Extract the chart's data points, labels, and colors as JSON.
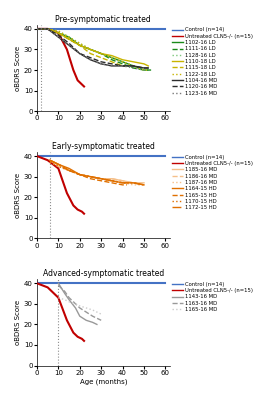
{
  "panels": [
    {
      "title": "Pre-symptomatic treated",
      "dashed_x": 2,
      "series": [
        {
          "label": "Control (n=14)",
          "color": "#4472C4",
          "ls": "solid",
          "lw": 1.5,
          "x": [
            0,
            5,
            10,
            15,
            20,
            25,
            30,
            35,
            40,
            45,
            50,
            55,
            60
          ],
          "y": [
            40,
            40,
            40,
            40,
            40,
            40,
            40,
            40,
            40,
            40,
            40,
            40,
            40
          ]
        },
        {
          "label": "Untreated CLN5-/- (n=15)",
          "color": "#C00000",
          "ls": "solid",
          "lw": 1.5,
          "x": [
            0,
            5,
            10,
            14,
            17,
            19,
            21,
            22
          ],
          "y": [
            40,
            40,
            38,
            30,
            20,
            15,
            13,
            12
          ]
        },
        {
          "label": "1102-16 LD",
          "color": "#1a8a1a",
          "ls": "solid",
          "lw": 1.0,
          "x": [
            0,
            5,
            10,
            15,
            20,
            25,
            30,
            35,
            40,
            45,
            50,
            53
          ],
          "y": [
            40,
            40,
            38,
            36,
            32,
            30,
            28,
            26,
            24,
            22,
            20,
            20
          ]
        },
        {
          "label": "1111-16 LD",
          "color": "#1a8a1a",
          "ls": "dashed",
          "lw": 1.0,
          "x": [
            0,
            5,
            10,
            15,
            20,
            25,
            30,
            35,
            40,
            45,
            50,
            52
          ],
          "y": [
            40,
            40,
            38,
            35,
            32,
            30,
            28,
            25,
            23,
            21,
            20,
            20
          ]
        },
        {
          "label": "1128-16 LD",
          "color": "#7dc87d",
          "ls": "dotted",
          "lw": 1.0,
          "x": [
            0,
            5,
            10,
            15,
            20,
            25,
            30,
            35,
            40,
            45,
            50,
            52
          ],
          "y": [
            40,
            40,
            39,
            36,
            33,
            30,
            28,
            26,
            24,
            22,
            20,
            20
          ]
        },
        {
          "label": "1110-18 LD",
          "color": "#c8b400",
          "ls": "solid",
          "lw": 1.0,
          "x": [
            0,
            5,
            10,
            15,
            20,
            25,
            30,
            35,
            40,
            45,
            50,
            52
          ],
          "y": [
            40,
            40,
            38,
            35,
            32,
            30,
            28,
            27,
            25,
            24,
            23,
            22
          ]
        },
        {
          "label": "1115-18 LD",
          "color": "#c8b400",
          "ls": "dashed",
          "lw": 1.0,
          "x": [
            0,
            5,
            10,
            15,
            20,
            25,
            30,
            35,
            40,
            42
          ],
          "y": [
            40,
            40,
            38,
            35,
            32,
            28,
            26,
            24,
            22,
            22
          ]
        },
        {
          "label": "1122-18 LD",
          "color": "#c8b400",
          "ls": "dotted",
          "lw": 1.0,
          "x": [
            0,
            5,
            10,
            15,
            20,
            25,
            30,
            35,
            40,
            45,
            50,
            52
          ],
          "y": [
            40,
            40,
            39,
            36,
            33,
            30,
            28,
            26,
            24,
            22,
            20,
            20
          ]
        },
        {
          "label": "1104-16 MD",
          "color": "#2d2d2d",
          "ls": "solid",
          "lw": 1.0,
          "x": [
            0,
            5,
            10,
            15,
            20,
            25,
            30,
            35,
            40,
            45,
            50,
            52
          ],
          "y": [
            40,
            40,
            36,
            32,
            28,
            25,
            23,
            22,
            22,
            22,
            21,
            21
          ]
        },
        {
          "label": "1120-16 MD",
          "color": "#2d2d2d",
          "ls": "dashed",
          "lw": 1.0,
          "x": [
            0,
            5,
            10,
            15,
            20,
            25,
            30,
            35,
            40,
            45,
            50,
            52
          ],
          "y": [
            40,
            40,
            37,
            33,
            28,
            26,
            24,
            23,
            22,
            22,
            21,
            21
          ]
        },
        {
          "label": "1123-16 MD",
          "color": "#7a7a7a",
          "ls": "dotted",
          "lw": 1.0,
          "x": [
            0,
            5,
            10,
            15,
            20,
            25,
            30,
            35,
            40,
            45,
            50
          ],
          "y": [
            40,
            40,
            36,
            32,
            28,
            25,
            23,
            22,
            22,
            21,
            20
          ]
        }
      ]
    },
    {
      "title": "Early-symptomatic treated",
      "dashed_x": 6,
      "series": [
        {
          "label": "Control (n=14)",
          "color": "#4472C4",
          "ls": "solid",
          "lw": 1.5,
          "x": [
            0,
            5,
            10,
            15,
            20,
            25,
            30,
            35,
            40,
            45,
            50,
            55,
            60
          ],
          "y": [
            40,
            40,
            40,
            40,
            40,
            40,
            40,
            40,
            40,
            40,
            40,
            40,
            40
          ]
        },
        {
          "label": "Untreated CLN5-/- (n=15)",
          "color": "#C00000",
          "ls": "solid",
          "lw": 1.5,
          "x": [
            0,
            5,
            10,
            14,
            17,
            19,
            21,
            22
          ],
          "y": [
            40,
            38,
            34,
            22,
            16,
            14,
            13,
            12
          ]
        },
        {
          "label": "1185-16 MD",
          "color": "#f5c08a",
          "ls": "solid",
          "lw": 1.0,
          "x": [
            6,
            10,
            15,
            20,
            25,
            30,
            35,
            40,
            45,
            50
          ],
          "y": [
            38,
            36,
            33,
            31,
            30,
            29,
            29,
            28,
            27,
            27
          ]
        },
        {
          "label": "1186-16 MD",
          "color": "#f5c08a",
          "ls": "dashed",
          "lw": 1.0,
          "x": [
            6,
            10,
            15,
            20,
            25,
            30,
            35,
            40,
            45,
            50
          ],
          "y": [
            38,
            35,
            33,
            31,
            30,
            29,
            29,
            28,
            27,
            26
          ]
        },
        {
          "label": "1187-16 MD",
          "color": "#f5c08a",
          "ls": "dotted",
          "lw": 1.0,
          "x": [
            6,
            10,
            15,
            20,
            25,
            30,
            35,
            40,
            45,
            50
          ],
          "y": [
            37,
            35,
            33,
            31,
            30,
            29,
            28,
            27,
            26,
            26
          ]
        },
        {
          "label": "1164-15 HD",
          "color": "#e07000",
          "ls": "solid",
          "lw": 1.0,
          "x": [
            6,
            10,
            15,
            20,
            25,
            30,
            35,
            40,
            45,
            50
          ],
          "y": [
            38,
            36,
            34,
            31,
            30,
            29,
            28,
            27,
            27,
            26
          ]
        },
        {
          "label": "1165-15 HD",
          "color": "#e07000",
          "ls": "dashed",
          "lw": 1.0,
          "x": [
            6,
            10,
            15,
            20,
            25,
            30,
            35,
            40,
            42
          ],
          "y": [
            38,
            36,
            33,
            31,
            29,
            28,
            27,
            26,
            26
          ]
        },
        {
          "label": "1170-15 HD",
          "color": "#e07000",
          "ls": "dotted",
          "lw": 1.0,
          "x": [
            6,
            10,
            15,
            20,
            25,
            30,
            35,
            40,
            45,
            50
          ],
          "y": [
            37,
            35,
            33,
            31,
            30,
            29,
            28,
            27,
            27,
            26
          ]
        },
        {
          "label": "1172-15 HD",
          "color": "#e07000",
          "ls": "dashdot",
          "lw": 1.0,
          "x": [
            6,
            10,
            15,
            20,
            25,
            30,
            35,
            40,
            45,
            50
          ],
          "y": [
            38,
            36,
            33,
            31,
            30,
            29,
            28,
            27,
            27,
            26
          ]
        }
      ]
    },
    {
      "title": "Advanced-symptomatic treated",
      "dashed_x": 10,
      "series": [
        {
          "label": "Control (n=14)",
          "color": "#4472C4",
          "ls": "solid",
          "lw": 1.5,
          "x": [
            0,
            5,
            10,
            15,
            20,
            25,
            30,
            35,
            40,
            45,
            50,
            55,
            60
          ],
          "y": [
            40,
            40,
            40,
            40,
            40,
            40,
            40,
            40,
            40,
            40,
            40,
            40,
            40
          ]
        },
        {
          "label": "Untreated CLN5-/- (n=15)",
          "color": "#C00000",
          "ls": "solid",
          "lw": 1.5,
          "x": [
            0,
            5,
            10,
            14,
            17,
            19,
            21,
            22
          ],
          "y": [
            40,
            38,
            33,
            22,
            16,
            14,
            13,
            12
          ]
        },
        {
          "label": "1143-16 MD",
          "color": "#999999",
          "ls": "solid",
          "lw": 1.0,
          "x": [
            10,
            13,
            15,
            18,
            20,
            23,
            26,
            28
          ],
          "y": [
            40,
            35,
            32,
            28,
            24,
            22,
            21,
            20
          ]
        },
        {
          "label": "1163-16 MD",
          "color": "#999999",
          "ls": "dashed",
          "lw": 1.0,
          "x": [
            10,
            13,
            15,
            18,
            20,
            23,
            26,
            28,
            30
          ],
          "y": [
            39,
            36,
            33,
            30,
            28,
            26,
            24,
            23,
            22
          ]
        },
        {
          "label": "1165-16 MD",
          "color": "#cccccc",
          "ls": "dotted",
          "lw": 1.0,
          "x": [
            10,
            13,
            15,
            18,
            20,
            23,
            26,
            28,
            30
          ],
          "y": [
            33,
            32,
            31,
            30,
            29,
            28,
            27,
            26,
            25
          ]
        }
      ]
    }
  ],
  "ylabel": "oBDRS Score",
  "xlabel": "Age (months)",
  "ylim": [
    0,
    42
  ],
  "xlim": [
    0,
    62
  ],
  "yticks": [
    0,
    10,
    20,
    30,
    40
  ],
  "xticks": [
    0,
    10,
    20,
    30,
    40,
    50,
    60
  ],
  "legend_entries_per_panel": [
    [
      {
        "label": "Control (n=14)",
        "color": "#4472C4",
        "ls": "solid"
      },
      {
        "label": "Untreated CLN5-/- (n=15)",
        "color": "#C00000",
        "ls": "solid"
      },
      {
        "label": "1102-16 LD",
        "color": "#1a8a1a",
        "ls": "solid"
      },
      {
        "label": "1111-16 LD",
        "color": "#1a8a1a",
        "ls": "dashed"
      },
      {
        "label": "1128-16 LD",
        "color": "#7dc87d",
        "ls": "dotted"
      },
      {
        "label": "1110-18 LD",
        "color": "#c8b400",
        "ls": "solid"
      },
      {
        "label": "1115-18 LD",
        "color": "#c8b400",
        "ls": "dashed"
      },
      {
        "label": "1122-18 LD",
        "color": "#c8b400",
        "ls": "dotted"
      },
      {
        "label": "1104-16 MD",
        "color": "#2d2d2d",
        "ls": "solid"
      },
      {
        "label": "1120-16 MD",
        "color": "#2d2d2d",
        "ls": "dashed"
      },
      {
        "label": "1123-16 MD",
        "color": "#7a7a7a",
        "ls": "dotted"
      }
    ],
    [
      {
        "label": "Control (n=14)",
        "color": "#4472C4",
        "ls": "solid"
      },
      {
        "label": "Untreated CLN5-/- (n=15)",
        "color": "#C00000",
        "ls": "solid"
      },
      {
        "label": "1185-16 MD",
        "color": "#f5c08a",
        "ls": "solid"
      },
      {
        "label": "1186-16 MD",
        "color": "#f5c08a",
        "ls": "dashed"
      },
      {
        "label": "1187-16 MD",
        "color": "#f5c08a",
        "ls": "dotted"
      },
      {
        "label": "1164-15 HD",
        "color": "#e07000",
        "ls": "solid"
      },
      {
        "label": "1165-15 HD",
        "color": "#e07000",
        "ls": "dashed"
      },
      {
        "label": "1170-15 HD",
        "color": "#e07000",
        "ls": "dotted"
      },
      {
        "label": "1172-15 HD",
        "color": "#e07000",
        "ls": "dashdot"
      }
    ],
    [
      {
        "label": "Control (n=14)",
        "color": "#4472C4",
        "ls": "solid"
      },
      {
        "label": "Untreated CLN5-/- (n=15)",
        "color": "#C00000",
        "ls": "solid"
      },
      {
        "label": "1143-16 MD",
        "color": "#999999",
        "ls": "solid"
      },
      {
        "label": "1163-16 MD",
        "color": "#999999",
        "ls": "dashed"
      },
      {
        "label": "1165-16 MD",
        "color": "#cccccc",
        "ls": "dotted"
      }
    ]
  ]
}
